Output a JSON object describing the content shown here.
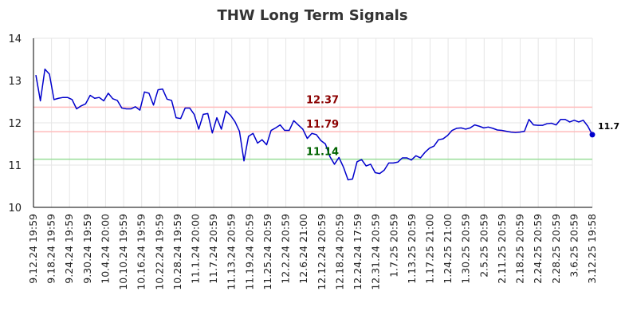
{
  "chart_data": {
    "type": "line",
    "title": "THW Long Term Signals",
    "xlabel": "",
    "ylabel": "",
    "ylim": [
      10,
      14
    ],
    "yticks": [
      "10",
      "11",
      "12",
      "13",
      "14"
    ],
    "grid": true,
    "xtick_labels": [
      "9.12.24 19:59",
      "9.18.24 19:59",
      "9.24.24 19:59",
      "9.30.24 19:59",
      "10.4.24 20:00",
      "10.10.24 19:59",
      "10.16.24 19:59",
      "10.22.24 19:59",
      "10.28.24 19:59",
      "11.1.24 20:00",
      "11.7.24 20:59",
      "11.13.24 20:59",
      "11.19.24 20:59",
      "11.25.24 20:59",
      "12.2.24 20:59",
      "12.6.24 21:00",
      "12.12.24 20:59",
      "12.18.24 20:59",
      "12.24.24 17:59",
      "12.31.24 20:59",
      "1.7.25 20:59",
      "1.13.25 20:59",
      "1.17.25 21:00",
      "1.24.25 21:00",
      "1.30.25 20:59",
      "2.5.25 20:59",
      "2.11.25 20:59",
      "2.18.25 20:59",
      "2.24.25 20:59",
      "2.28.25 20:59",
      "3.6.25 20:59",
      "3.12.25 19:58"
    ],
    "reference_lines": [
      {
        "label": "12.37",
        "value": 12.37,
        "color": "#ffbbbb",
        "label_color": "#8b0000"
      },
      {
        "label": "11.79",
        "value": 11.79,
        "color": "#ffbbbb",
        "label_color": "#8b0000"
      },
      {
        "label": "11.14",
        "value": 11.14,
        "color": "#99dd99",
        "label_color": "#006400"
      }
    ],
    "series": [
      {
        "color": "#0000cc",
        "values": [
          13.13,
          12.52,
          13.27,
          13.15,
          12.55,
          12.58,
          12.6,
          12.6,
          12.55,
          12.33,
          12.4,
          12.45,
          12.65,
          12.58,
          12.6,
          12.52,
          12.7,
          12.57,
          12.53,
          12.35,
          12.33,
          12.33,
          12.38,
          12.3,
          12.73,
          12.7,
          12.42,
          12.78,
          12.8,
          12.56,
          12.53,
          12.12,
          12.1,
          12.35,
          12.35,
          12.2,
          11.85,
          12.2,
          12.22,
          11.76,
          12.12,
          11.85,
          12.28,
          12.18,
          12.03,
          11.8,
          11.1,
          11.68,
          11.75,
          11.52,
          11.6,
          11.48,
          11.82,
          11.88,
          11.95,
          11.82,
          11.82,
          12.05,
          11.95,
          11.85,
          11.63,
          11.75,
          11.72,
          11.58,
          11.5,
          11.2,
          11.02,
          11.18,
          10.95,
          10.65,
          10.67,
          11.08,
          11.13,
          10.98,
          11.02,
          10.82,
          10.8,
          10.88,
          11.05,
          11.05,
          11.07,
          11.17,
          11.17,
          11.12,
          11.22,
          11.17,
          11.3,
          11.4,
          11.45,
          11.6,
          11.62,
          11.7,
          11.82,
          11.87,
          11.88,
          11.85,
          11.88,
          11.95,
          11.92,
          11.88,
          11.9,
          11.87,
          11.83,
          11.82,
          11.8,
          11.78,
          11.77,
          11.78,
          11.8,
          12.08,
          11.95,
          11.94,
          11.94,
          11.98,
          11.99,
          11.95,
          12.08,
          12.08,
          12.02,
          12.06,
          12.02,
          12.06,
          11.92,
          11.72
        ]
      }
    ],
    "last_value_label": "11.7"
  }
}
